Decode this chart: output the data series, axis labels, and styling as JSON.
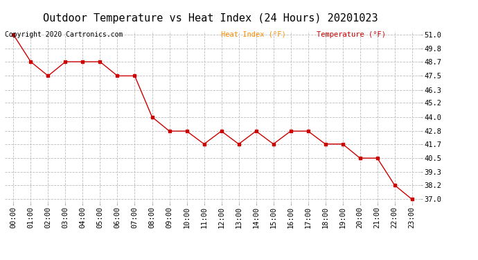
{
  "title": "Outdoor Temperature vs Heat Index (24 Hours) 20201023",
  "copyright_text": "Copyright 2020 Cartronics.com",
  "legend_heat_index": "Heat Index (°F)",
  "legend_temperature": "Temperature (°F)",
  "hours": [
    "00:00",
    "01:00",
    "02:00",
    "03:00",
    "04:00",
    "05:00",
    "06:00",
    "07:00",
    "08:00",
    "09:00",
    "10:00",
    "11:00",
    "12:00",
    "13:00",
    "14:00",
    "15:00",
    "16:00",
    "17:00",
    "18:00",
    "19:00",
    "20:00",
    "21:00",
    "22:00",
    "23:00"
  ],
  "temperature": [
    51.0,
    48.7,
    47.5,
    48.7,
    48.7,
    48.7,
    47.5,
    47.5,
    44.0,
    42.8,
    42.8,
    41.7,
    42.8,
    41.7,
    42.8,
    41.7,
    42.8,
    42.8,
    41.7,
    41.7,
    40.5,
    40.5,
    38.2,
    37.0
  ],
  "ylim_min": 36.7,
  "ylim_max": 51.3,
  "yticks": [
    37.0,
    38.2,
    39.3,
    40.5,
    41.7,
    42.8,
    44.0,
    45.2,
    46.3,
    47.5,
    48.7,
    49.8,
    51.0
  ],
  "line_color": "#cc0000",
  "bg_color": "#ffffff",
  "grid_color": "#bbbbbb",
  "title_color": "#000000",
  "legend_heat_color": "#ff8c00",
  "legend_temp_color": "#cc0000",
  "copyright_color": "#000000",
  "title_fontsize": 11,
  "tick_fontsize": 7.5,
  "copyright_fontsize": 7,
  "legend_fontsize": 7.5
}
